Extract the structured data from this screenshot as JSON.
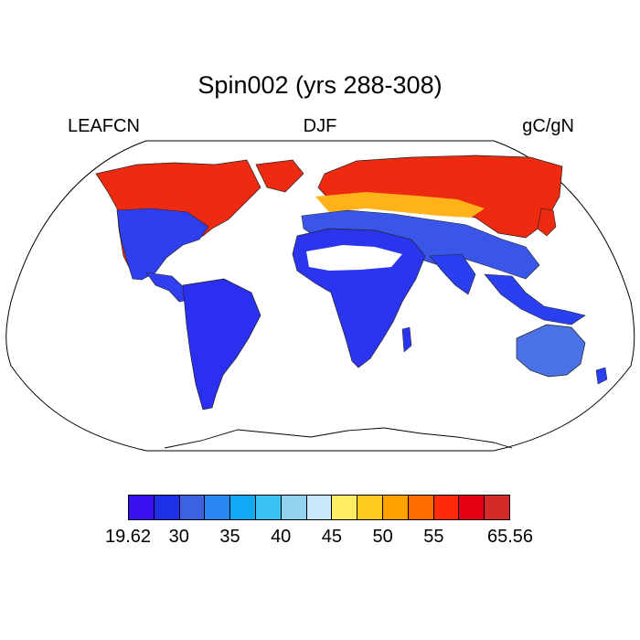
{
  "title": "Spin002 (yrs 288-308)",
  "variable": "LEAFCN",
  "season": "DJF",
  "units": "gC/gN",
  "colorbar": {
    "colors": [
      "#3a10f2",
      "#1d30e8",
      "#3c62e0",
      "#2a86f3",
      "#11a9f5",
      "#38c3f2",
      "#92d1ef",
      "#c9e8f9",
      "#ffee64",
      "#ffcc22",
      "#ffa200",
      "#ff6d00",
      "#ff2a0a",
      "#e40012",
      "#d42a2a"
    ],
    "labels": [
      "19.62",
      "30",
      "35",
      "40",
      "45",
      "50",
      "55",
      "65.56"
    ],
    "label_positions": [
      0,
      2,
      4,
      6,
      8,
      10,
      12,
      15
    ]
  }
}
